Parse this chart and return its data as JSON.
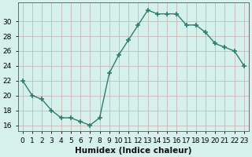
{
  "x": [
    0,
    1,
    2,
    3,
    4,
    5,
    6,
    7,
    8,
    9,
    10,
    11,
    12,
    13,
    14,
    15,
    16,
    17,
    18,
    19,
    20,
    21,
    22,
    23
  ],
  "y": [
    22,
    20,
    19.5,
    18,
    17,
    17,
    16.5,
    16,
    17,
    23,
    25.5,
    27.5,
    29.5,
    31.5,
    31,
    31,
    31,
    29.5,
    29.5,
    28.5,
    27,
    26.5,
    26,
    24
  ],
  "line_color": "#2e7d6e",
  "marker": "+",
  "marker_size": 4,
  "marker_edge_width": 1.2,
  "bg_color": "#d6f0ec",
  "grid_color_h": "#c8b8b8",
  "grid_color_v": "#c8b8b8",
  "xlabel": "Humidex (Indice chaleur)",
  "ylabel_ticks": [
    16,
    18,
    20,
    22,
    24,
    26,
    28,
    30
  ],
  "xlim": [
    -0.5,
    23.5
  ],
  "ylim": [
    15.2,
    32.5
  ],
  "xlabel_fontsize": 7.5,
  "tick_fontsize": 6.5,
  "line_width": 1.0,
  "x_tick_labels": [
    "0",
    "1",
    "2",
    "3",
    "4",
    "5",
    "6",
    "7",
    "8",
    "9",
    "10",
    "11",
    "12",
    "13",
    "14",
    "15",
    "16",
    "17",
    "18",
    "19",
    "20",
    "21",
    "22",
    "23"
  ]
}
